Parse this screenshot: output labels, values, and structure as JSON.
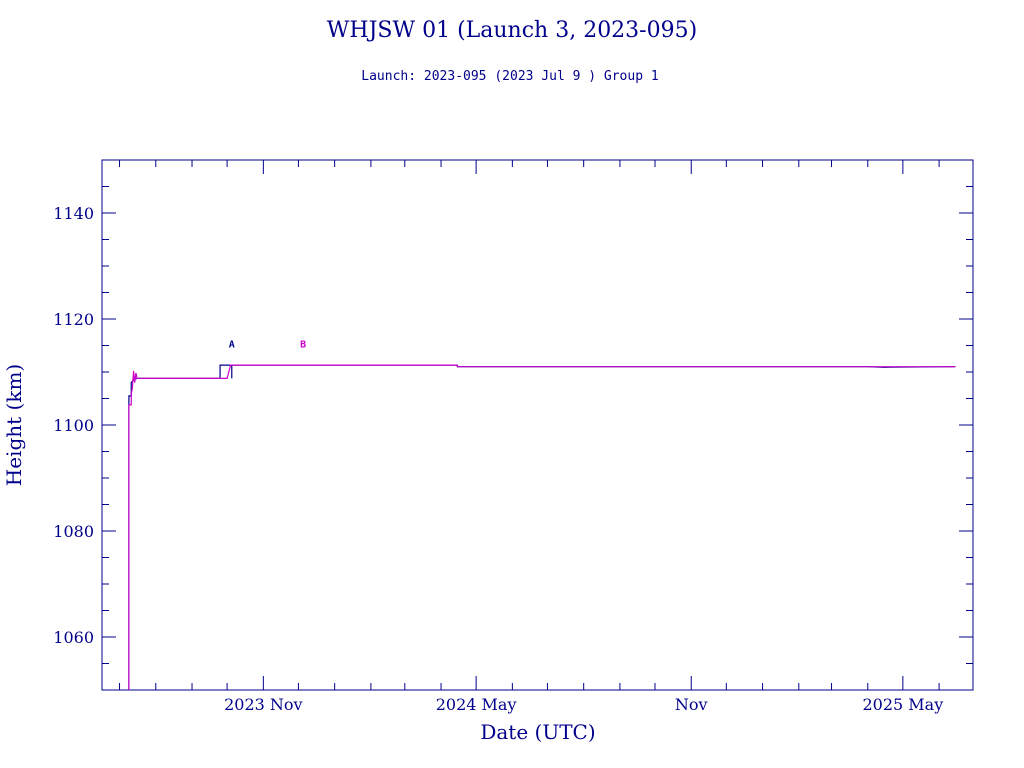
{
  "chart_data": {
    "type": "line",
    "title": "WHJSW 01 (Launch 3, 2023-095)",
    "subtitle": "Launch: 2023-095  (2023 Jul  9 )  Group 1",
    "xlabel": "Date (UTC)",
    "ylabel": "Height (km)",
    "xlim": [
      "2023-06-16",
      "2025-06-30"
    ],
    "ylim": [
      1050,
      1150
    ],
    "y_ticks": [
      1060,
      1080,
      1100,
      1120,
      1140
    ],
    "x_ticks": [
      {
        "date": "2023-11-01",
        "label": "2023 Nov"
      },
      {
        "date": "2024-05-01",
        "label": "2024 May"
      },
      {
        "date": "2024-11-01",
        "label": "Nov"
      },
      {
        "date": "2025-05-01",
        "label": "2025 May"
      }
    ],
    "annotations": [
      {
        "text": "A",
        "date": "2023-10-05",
        "y": 1114.6,
        "color": "#00008b"
      },
      {
        "text": "B",
        "date": "2023-12-05",
        "y": 1114.6,
        "color": "#cc00cc"
      }
    ],
    "series": [
      {
        "color": "#00008b",
        "points": [
          [
            "2023-07-09",
            1050
          ],
          [
            "2023-07-09",
            1105.5
          ],
          [
            "2023-07-11",
            1105.5
          ],
          [
            "2023-07-11",
            1108.0
          ],
          [
            "2023-07-13",
            1108.5
          ],
          [
            "2023-07-16",
            1108.8
          ],
          [
            "2023-09-25",
            1108.8
          ],
          [
            "2023-09-25",
            1111.3
          ],
          [
            "2023-10-05",
            1111.3
          ],
          [
            "2023-10-05",
            1108.8
          ],
          [
            "2023-10-05",
            1111.3
          ],
          [
            "2024-04-15",
            1111.3
          ],
          [
            "2024-04-15",
            1111.0
          ],
          [
            "2025-04-01",
            1111.0
          ],
          [
            "2025-04-15",
            1110.9
          ],
          [
            "2025-06-15",
            1111.0
          ]
        ]
      },
      {
        "color": "#cc00cc",
        "points": [
          [
            "2023-07-09",
            1050
          ],
          [
            "2023-07-09",
            1103.8
          ],
          [
            "2023-07-11",
            1103.8
          ],
          [
            "2023-07-11",
            1105.8
          ],
          [
            "2023-07-12",
            1107.0
          ],
          [
            "2023-07-13",
            1110.2
          ],
          [
            "2023-07-14",
            1108.0
          ],
          [
            "2023-07-15",
            1109.8
          ],
          [
            "2023-07-16",
            1108.8
          ],
          [
            "2023-09-25",
            1108.8
          ],
          [
            "2023-10-01",
            1108.8
          ],
          [
            "2023-10-04",
            1111.3
          ],
          [
            "2024-04-15",
            1111.3
          ],
          [
            "2024-04-15",
            1111.0
          ],
          [
            "2025-06-15",
            1111.0
          ]
        ]
      }
    ]
  }
}
